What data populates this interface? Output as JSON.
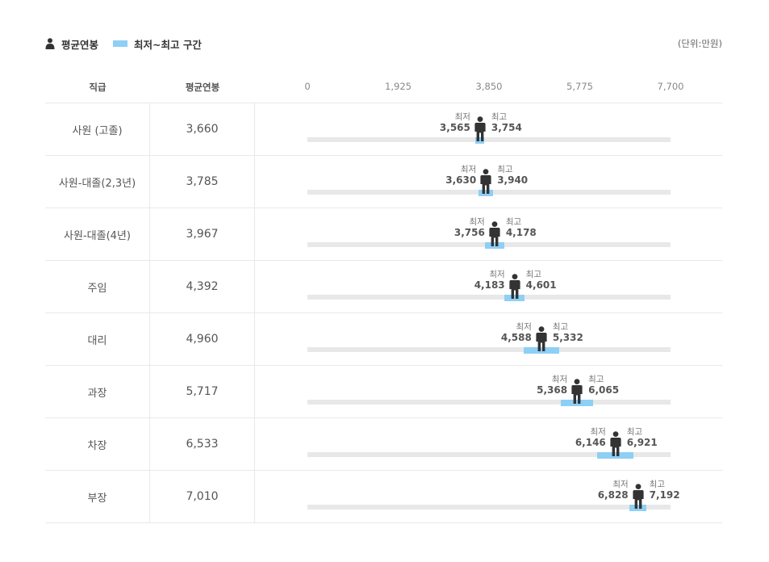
{
  "legend": {
    "avg_label": "평균연봉",
    "range_label": "최저~최고 구간"
  },
  "unit": "(단위:만원)",
  "headers": {
    "rank": "직급",
    "avg": "평균연봉"
  },
  "labels": {
    "min": "최저",
    "max": "최고"
  },
  "colors": {
    "range": "#8ecff5",
    "track": "#e8e8e8",
    "figure": "#333333"
  },
  "chart_data": {
    "type": "table",
    "axis": {
      "min": 0,
      "max": 7700,
      "ticks": [
        "0",
        "1,925",
        "3,850",
        "5,775",
        "7,700"
      ],
      "tick_values": [
        0,
        1925,
        3850,
        5775,
        7700
      ]
    },
    "rows": [
      {
        "rank": "사원 (고졸)",
        "avg": 3660,
        "avg_text": "3,660",
        "min": 3565,
        "min_text": "3,565",
        "max": 3754,
        "max_text": "3,754"
      },
      {
        "rank": "사원-대졸(2,3년)",
        "avg": 3785,
        "avg_text": "3,785",
        "min": 3630,
        "min_text": "3,630",
        "max": 3940,
        "max_text": "3,940"
      },
      {
        "rank": "사원-대졸(4년)",
        "avg": 3967,
        "avg_text": "3,967",
        "min": 3756,
        "min_text": "3,756",
        "max": 4178,
        "max_text": "4,178"
      },
      {
        "rank": "주임",
        "avg": 4392,
        "avg_text": "4,392",
        "min": 4183,
        "min_text": "4,183",
        "max": 4601,
        "max_text": "4,601"
      },
      {
        "rank": "대리",
        "avg": 4960,
        "avg_text": "4,960",
        "min": 4588,
        "min_text": "4,588",
        "max": 5332,
        "max_text": "5,332"
      },
      {
        "rank": "과장",
        "avg": 5717,
        "avg_text": "5,717",
        "min": 5368,
        "min_text": "5,368",
        "max": 6065,
        "max_text": "6,065"
      },
      {
        "rank": "차장",
        "avg": 6533,
        "avg_text": "6,533",
        "min": 6146,
        "min_text": "6,146",
        "max": 6921,
        "max_text": "6,921"
      },
      {
        "rank": "부장",
        "avg": 7010,
        "avg_text": "7,010",
        "min": 6828,
        "min_text": "6,828",
        "max": 7192,
        "max_text": "7,192"
      }
    ]
  }
}
